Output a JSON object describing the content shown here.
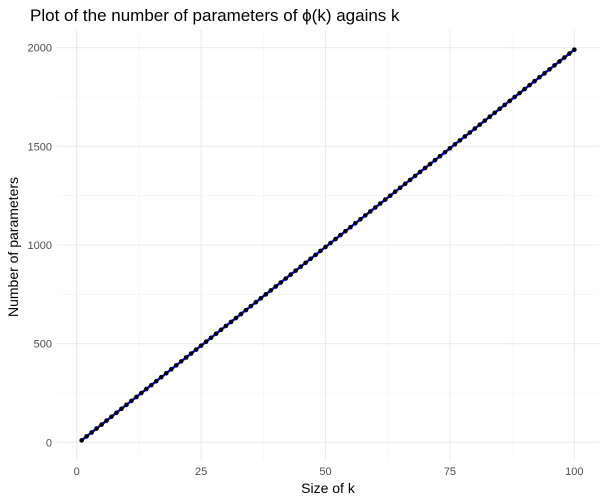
{
  "chart_data": {
    "type": "line",
    "title": "Plot of the number of parameters of ϕ(k) agains k",
    "xlabel": "Size of k",
    "ylabel": "Number of parameters",
    "xlim": [
      -3.95,
      104.95
    ],
    "ylim": [
      -89.5,
      2089.5
    ],
    "x_ticks": [
      0,
      25,
      50,
      75,
      100
    ],
    "y_ticks": [
      0,
      500,
      1000,
      1500,
      2000
    ],
    "x_tick_labels": [
      "0",
      "25",
      "50",
      "75",
      "100"
    ],
    "y_tick_labels": [
      "0",
      "500",
      "1000",
      "1500",
      "2000"
    ],
    "grid": true,
    "legend": "none",
    "series": [
      {
        "x_start": 1,
        "x_end": 100,
        "x_step": 1,
        "y_formula": "20*k - 10",
        "y_start": 10,
        "y_end": 1990,
        "line_color": "#0000ff",
        "point_color": "#000000"
      }
    ]
  }
}
